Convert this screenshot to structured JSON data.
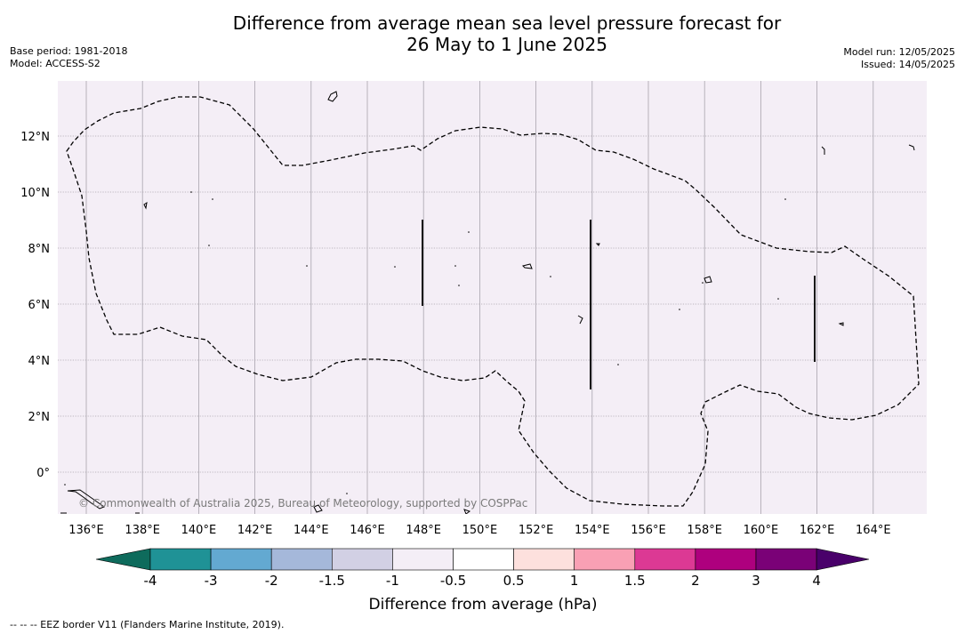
{
  "title_line1": "Difference from average mean sea level pressure forecast for",
  "title_line2": "26 May to 1 June 2025",
  "base_period": "Base period: 1981-2018",
  "model": "Model: ACCESS-S2",
  "model_run": "Model run: 12/05/2025",
  "issued": "Issued: 14/05/2025",
  "copyright": "© Commonwealth of Australia 2025, Bureau of Meteorology, supported by COSPPac",
  "footnote": "--  --  -- EEZ border V11 (Flanders Marine Institute, 2019).",
  "colors": {
    "map_background": "#f4eef6",
    "gridline": "#a9a4ad",
    "colorbar": [
      "#0e6b5c",
      "#1f9296",
      "#63a9d1",
      "#a5b8da",
      "#d2d0e4",
      "#f4eef6",
      "#ffffff",
      "#fde0dd",
      "#f9a0b4",
      "#dc3994",
      "#ae007e",
      "#7a0177",
      "#49006a"
    ]
  },
  "lon_ticks": [
    "136°E",
    "138°E",
    "140°E",
    "142°E",
    "144°E",
    "146°E",
    "148°E",
    "150°E",
    "152°E",
    "154°E",
    "156°E",
    "158°E",
    "160°E",
    "162°E",
    "164°E"
  ],
  "lat_ticks": [
    "12°N",
    "10°N",
    "8°N",
    "6°N",
    "4°N",
    "2°N",
    "0°"
  ],
  "colorbar_ticks": [
    "-4",
    "-3",
    "-2",
    "-1.5",
    "-1",
    "-0.5",
    "0.5",
    "1",
    "1.5",
    "2",
    "3",
    "4"
  ],
  "colorbar_label": "Difference from average (hPa)"
}
